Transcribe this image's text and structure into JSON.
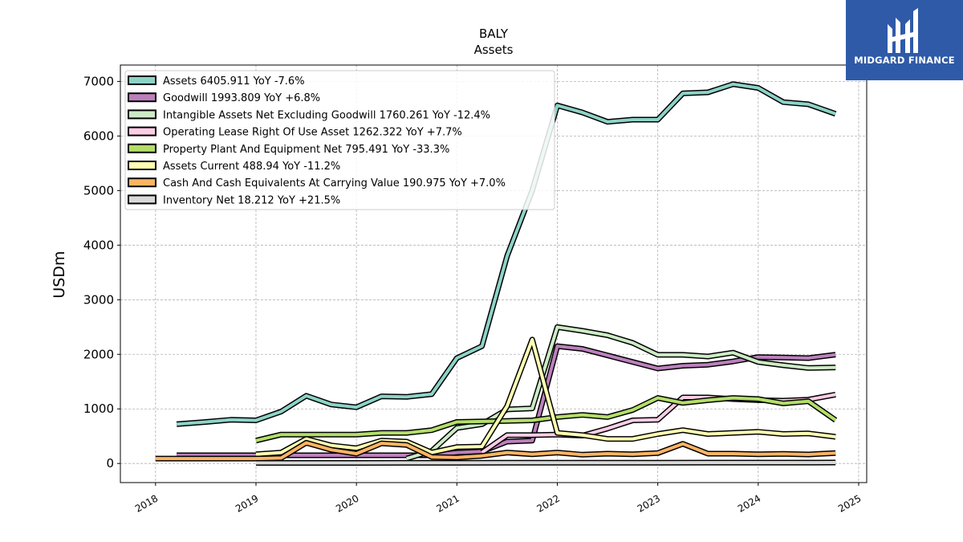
{
  "chart_data": {
    "type": "line",
    "title": "BALY",
    "subtitle": "Assets",
    "ylabel": "USDm",
    "xlabel": "",
    "ylim": [
      -350,
      7300
    ],
    "xlim": [
      2017.65,
      2025.08
    ],
    "y_ticks": [
      0,
      1000,
      2000,
      3000,
      4000,
      5000,
      6000,
      7000
    ],
    "x_ticks": [
      2018,
      2019,
      2020,
      2021,
      2022,
      2023,
      2024,
      2025
    ],
    "x_tick_labels": [
      "2018",
      "2019",
      "2020",
      "2021",
      "2022",
      "2023",
      "2024",
      "2025"
    ],
    "grid": true,
    "legend_position": "top-left",
    "series": [
      {
        "name": "Assets",
        "legend": "Assets  6405.911 YoY -7.6%",
        "color": "#8dd3c7",
        "points": [
          [
            2018.21,
            720
          ],
          [
            2018.5,
            760
          ],
          [
            2018.75,
            800
          ],
          [
            2019.0,
            790
          ],
          [
            2019.25,
            950
          ],
          [
            2019.5,
            1240
          ],
          [
            2019.75,
            1080
          ],
          [
            2020.0,
            1030
          ],
          [
            2020.25,
            1230
          ],
          [
            2020.5,
            1220
          ],
          [
            2020.75,
            1270
          ],
          [
            2021.0,
            1930
          ],
          [
            2021.25,
            2150
          ],
          [
            2021.5,
            3800
          ],
          [
            2021.75,
            5000
          ],
          [
            2022.0,
            6560
          ],
          [
            2022.25,
            6430
          ],
          [
            2022.5,
            6260
          ],
          [
            2022.75,
            6300
          ],
          [
            2023.0,
            6300
          ],
          [
            2023.25,
            6780
          ],
          [
            2023.5,
            6800
          ],
          [
            2023.75,
            6950
          ],
          [
            2024.0,
            6880
          ],
          [
            2024.25,
            6620
          ],
          [
            2024.5,
            6580
          ],
          [
            2024.77,
            6406
          ]
        ]
      },
      {
        "name": "Goodwill",
        "legend": "Goodwill  1993.809 YoY +6.8%",
        "color": "#bc80bd",
        "points": [
          [
            2018.21,
            150
          ],
          [
            2018.5,
            150
          ],
          [
            2018.75,
            150
          ],
          [
            2019.0,
            150
          ],
          [
            2019.25,
            150
          ],
          [
            2019.5,
            150
          ],
          [
            2019.75,
            150
          ],
          [
            2020.0,
            150
          ],
          [
            2020.25,
            150
          ],
          [
            2020.5,
            150
          ],
          [
            2020.75,
            150
          ],
          [
            2021.0,
            200
          ],
          [
            2021.25,
            220
          ],
          [
            2021.5,
            400
          ],
          [
            2021.75,
            420
          ],
          [
            2022.0,
            2150
          ],
          [
            2022.25,
            2100
          ],
          [
            2022.5,
            1980
          ],
          [
            2022.75,
            1860
          ],
          [
            2023.0,
            1740
          ],
          [
            2023.25,
            1790
          ],
          [
            2023.5,
            1810
          ],
          [
            2023.75,
            1870
          ],
          [
            2024.0,
            1950
          ],
          [
            2024.25,
            1940
          ],
          [
            2024.5,
            1930
          ],
          [
            2024.77,
            1994
          ]
        ]
      },
      {
        "name": "Intangible Assets Net Excluding Goodwill",
        "legend": "Intangible Assets Net Excluding Goodwill  1760.261 YoY -12.4%",
        "color": "#ccebc5",
        "points": [
          [
            2020.5,
            90
          ],
          [
            2020.75,
            230
          ],
          [
            2021.0,
            650
          ],
          [
            2021.25,
            720
          ],
          [
            2021.5,
            990
          ],
          [
            2021.75,
            1010
          ],
          [
            2022.0,
            2500
          ],
          [
            2022.25,
            2430
          ],
          [
            2022.5,
            2350
          ],
          [
            2022.75,
            2210
          ],
          [
            2023.0,
            1990
          ],
          [
            2023.25,
            1990
          ],
          [
            2023.5,
            1960
          ],
          [
            2023.75,
            2030
          ],
          [
            2024.0,
            1860
          ],
          [
            2024.25,
            1800
          ],
          [
            2024.5,
            1750
          ],
          [
            2024.77,
            1760
          ]
        ]
      },
      {
        "name": "Operating Lease Right Of Use Asset",
        "legend": "Operating Lease Right Of Use Asset  1262.322 YoY +7.7%",
        "color": "#fccde5",
        "points": [
          [
            2021.25,
            200
          ],
          [
            2021.5,
            520
          ],
          [
            2021.75,
            520
          ],
          [
            2022.0,
            530
          ],
          [
            2022.25,
            510
          ],
          [
            2022.5,
            640
          ],
          [
            2022.75,
            790
          ],
          [
            2023.0,
            800
          ],
          [
            2023.25,
            1210
          ],
          [
            2023.5,
            1210
          ],
          [
            2023.75,
            1180
          ],
          [
            2024.0,
            1160
          ],
          [
            2024.25,
            1150
          ],
          [
            2024.5,
            1170
          ],
          [
            2024.77,
            1262
          ]
        ]
      },
      {
        "name": "Property Plant And Equipment Net",
        "legend": "Property Plant And Equipment Net  795.491 YoY -33.3%",
        "color": "#b3de69",
        "points": [
          [
            2019.0,
            420
          ],
          [
            2019.25,
            530
          ],
          [
            2019.5,
            530
          ],
          [
            2019.75,
            530
          ],
          [
            2020.0,
            530
          ],
          [
            2020.25,
            560
          ],
          [
            2020.5,
            560
          ],
          [
            2020.75,
            610
          ],
          [
            2021.0,
            760
          ],
          [
            2021.25,
            770
          ],
          [
            2021.5,
            780
          ],
          [
            2021.75,
            790
          ],
          [
            2022.0,
            850
          ],
          [
            2022.25,
            890
          ],
          [
            2022.5,
            850
          ],
          [
            2022.75,
            980
          ],
          [
            2023.0,
            1200
          ],
          [
            2023.25,
            1110
          ],
          [
            2023.5,
            1160
          ],
          [
            2023.75,
            1200
          ],
          [
            2024.0,
            1180
          ],
          [
            2024.25,
            1100
          ],
          [
            2024.5,
            1140
          ],
          [
            2024.77,
            795
          ]
        ]
      },
      {
        "name": "Assets Current",
        "legend": "Assets Current  488.94 YoY -11.2%",
        "color": "#ffffb3",
        "points": [
          [
            2019.0,
            170
          ],
          [
            2019.25,
            200
          ],
          [
            2019.5,
            450
          ],
          [
            2019.75,
            330
          ],
          [
            2020.0,
            280
          ],
          [
            2020.25,
            420
          ],
          [
            2020.5,
            400
          ],
          [
            2020.75,
            200
          ],
          [
            2021.0,
            300
          ],
          [
            2021.25,
            310
          ],
          [
            2021.5,
            1050
          ],
          [
            2021.75,
            2270
          ],
          [
            2022.0,
            560
          ],
          [
            2022.25,
            520
          ],
          [
            2022.5,
            450
          ],
          [
            2022.75,
            450
          ],
          [
            2023.0,
            540
          ],
          [
            2023.25,
            610
          ],
          [
            2023.5,
            540
          ],
          [
            2023.75,
            560
          ],
          [
            2024.0,
            580
          ],
          [
            2024.25,
            540
          ],
          [
            2024.5,
            550
          ],
          [
            2024.77,
            489
          ]
        ]
      },
      {
        "name": "Cash And Cash Equivalents At Carrying Value",
        "legend": "Cash And Cash Equivalents At Carrying Value  190.975 YoY +7.0%",
        "color": "#fdb462",
        "points": [
          [
            2018.0,
            90
          ],
          [
            2018.5,
            90
          ],
          [
            2019.0,
            90
          ],
          [
            2019.25,
            100
          ],
          [
            2019.5,
            380
          ],
          [
            2019.75,
            250
          ],
          [
            2020.0,
            180
          ],
          [
            2020.25,
            370
          ],
          [
            2020.5,
            340
          ],
          [
            2020.75,
            120
          ],
          [
            2021.0,
            110
          ],
          [
            2021.25,
            140
          ],
          [
            2021.5,
            200
          ],
          [
            2021.75,
            170
          ],
          [
            2022.0,
            200
          ],
          [
            2022.25,
            160
          ],
          [
            2022.5,
            180
          ],
          [
            2022.75,
            170
          ],
          [
            2023.0,
            190
          ],
          [
            2023.25,
            360
          ],
          [
            2023.5,
            180
          ],
          [
            2023.75,
            180
          ],
          [
            2024.0,
            170
          ],
          [
            2024.25,
            175
          ],
          [
            2024.5,
            165
          ],
          [
            2024.77,
            191
          ]
        ]
      },
      {
        "name": "Inventory Net",
        "legend": "Inventory Net  18.212 YoY +21.5%",
        "color": "#d9d9d9",
        "points": [
          [
            2019.0,
            10
          ],
          [
            2019.5,
            10
          ],
          [
            2020.0,
            10
          ],
          [
            2020.5,
            12
          ],
          [
            2021.0,
            12
          ],
          [
            2021.5,
            14
          ],
          [
            2022.0,
            14
          ],
          [
            2022.5,
            15
          ],
          [
            2023.0,
            15
          ],
          [
            2023.5,
            16
          ],
          [
            2024.0,
            16
          ],
          [
            2024.5,
            17
          ],
          [
            2024.77,
            18
          ]
        ]
      }
    ]
  },
  "logo": {
    "text": "MIDGARD FINANCE",
    "icon": "midgard-logo-icon"
  }
}
